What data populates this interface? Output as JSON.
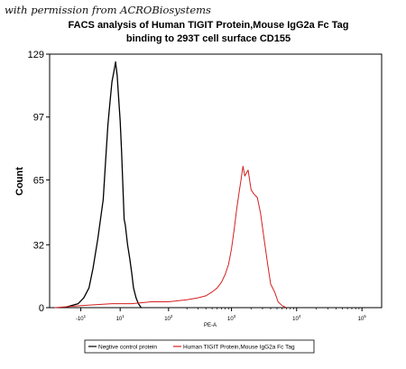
{
  "watermark": "with permission from ACROBiosystems",
  "chart_data": {
    "type": "line",
    "title_line1": "FACS analysis of Human TIGIT Protein,Mouse IgG2a Fc Tag",
    "title_line2": "binding to 293T cell surface CD155",
    "xlabel": "PE-A",
    "ylabel": "Count",
    "y_ticks": [
      "0",
      "32",
      "65",
      "97",
      "129"
    ],
    "y_tick_values": [
      0,
      32,
      65,
      97,
      129
    ],
    "ylim": [
      0,
      129
    ],
    "x_scale": "log",
    "x_ticks": [
      {
        "base": "-10",
        "exp": "1",
        "value": -10
      },
      {
        "base": "10",
        "exp": "1",
        "value": 10
      },
      {
        "base": "10",
        "exp": "2",
        "value": 100
      },
      {
        "base": "10",
        "exp": "3",
        "value": 1000
      },
      {
        "base": "10",
        "exp": "4",
        "value": 10000
      },
      {
        "base": "10",
        "exp": "5",
        "value": 100000
      }
    ],
    "legend": "bottom",
    "series": [
      {
        "name": "Negtive control protein",
        "color": "#000000",
        "x": [
          -26,
          -18,
          -12,
          -8,
          -5,
          -3,
          -1,
          1,
          2,
          3,
          4,
          5,
          6,
          7,
          8,
          9,
          10,
          11,
          12,
          13,
          14,
          16,
          18,
          20,
          22,
          25,
          28,
          32
        ],
        "y": [
          0,
          1,
          2,
          5,
          10,
          20,
          35,
          55,
          75,
          93,
          105,
          115,
          120,
          125,
          118,
          106,
          95,
          80,
          62,
          45,
          42,
          32,
          25,
          18,
          10,
          5,
          2,
          0
        ]
      },
      {
        "name": "Human TIGIT Protein,Mouse IgG2a Fc Tag",
        "color": "#d42020",
        "x": [
          -40,
          -10,
          5,
          10,
          20,
          50,
          100,
          200,
          300,
          400,
          500,
          600,
          700,
          800,
          900,
          1000,
          1100,
          1200,
          1300,
          1400,
          1500,
          1600,
          1800,
          2000,
          2200,
          2500,
          2800,
          3200,
          3600,
          4000,
          4600,
          5200,
          6000,
          7000
        ],
        "y": [
          0,
          1,
          2,
          2,
          2,
          3,
          3,
          4,
          5,
          6,
          8,
          10,
          13,
          17,
          22,
          30,
          40,
          50,
          58,
          65,
          72,
          67,
          70,
          60,
          58,
          56,
          48,
          34,
          22,
          12,
          8,
          3,
          1,
          0
        ]
      }
    ]
  }
}
